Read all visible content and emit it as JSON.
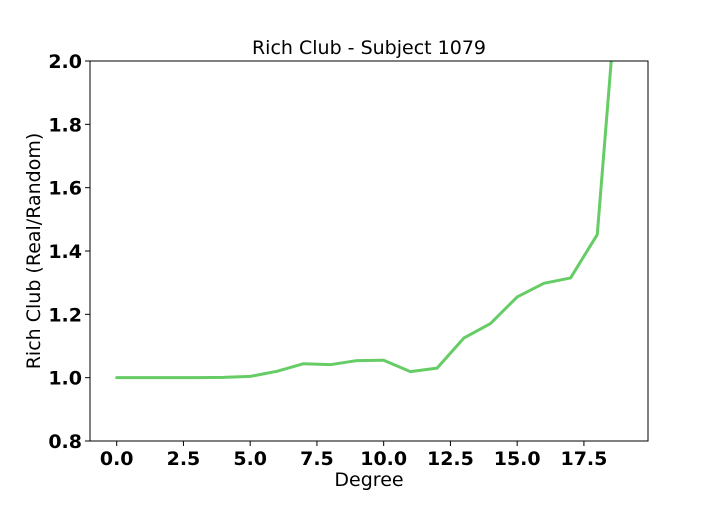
{
  "chart_data": {
    "type": "line",
    "title": "Rich Club - Subject 1079",
    "xlabel": "Degree",
    "ylabel": "Rich Club (Real/Random)",
    "xlim": [
      -1,
      19.9
    ],
    "ylim": [
      0.8,
      2.0
    ],
    "xticks": [
      "0.0",
      "2.5",
      "5.0",
      "7.5",
      "10.0",
      "12.5",
      "15.0",
      "17.5"
    ],
    "yticks": [
      "0.8",
      "1.0",
      "1.2",
      "1.4",
      "1.6",
      "1.8",
      "2.0"
    ],
    "grid": false,
    "series": [
      {
        "color": "#66cc66",
        "x": [
          0,
          1,
          2,
          3,
          4,
          5,
          6,
          7,
          8,
          9,
          10,
          11,
          12,
          13,
          14,
          15,
          16,
          17,
          18,
          19
        ],
        "y": [
          1.0,
          1.0,
          1.0,
          1.0,
          1.001,
          1.004,
          1.02,
          1.044,
          1.041,
          1.054,
          1.055,
          1.019,
          1.03,
          1.125,
          1.171,
          1.255,
          1.298,
          1.315,
          1.452,
          2.5
        ]
      }
    ]
  }
}
